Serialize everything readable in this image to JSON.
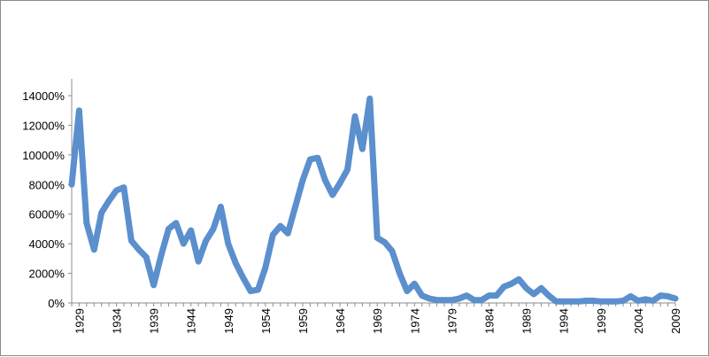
{
  "chart_data": {
    "type": "line",
    "title": "",
    "xlabel": "",
    "ylabel": "",
    "x_tick_labels": [
      "1929",
      "1934",
      "1939",
      "1944",
      "1949",
      "1954",
      "1959",
      "1964",
      "1969",
      "1974",
      "1979",
      "1984",
      "1989",
      "1994",
      "1999",
      "2004",
      "2009"
    ],
    "y_tick_labels": [
      "0%",
      "2000%",
      "4000%",
      "6000%",
      "8000%",
      "10000%",
      "12000%",
      "14000%"
    ],
    "ylim": [
      0,
      14000
    ],
    "xlim": [
      1928,
      2009
    ],
    "grid": false,
    "legend": "none",
    "series_color": "#5b8fcd",
    "series": [
      {
        "x": [
          1928,
          1929,
          1930,
          1931,
          1932,
          1933,
          1934,
          1935,
          1936,
          1937,
          1938,
          1939,
          1940,
          1941,
          1942,
          1943,
          1944,
          1945,
          1946,
          1947,
          1948,
          1949,
          1950,
          1951,
          1952,
          1953,
          1954,
          1955,
          1956,
          1957,
          1958,
          1959,
          1960,
          1961,
          1962,
          1963,
          1964,
          1965,
          1966,
          1967,
          1968,
          1969,
          1970,
          1971,
          1972,
          1973,
          1974,
          1975,
          1976,
          1977,
          1978,
          1979,
          1980,
          1981,
          1982,
          1983,
          1984,
          1985,
          1986,
          1987,
          1988,
          1989,
          1990,
          1991,
          1992,
          1993,
          1994,
          1995,
          1996,
          1997,
          1998,
          1999,
          2000,
          2001,
          2002,
          2003,
          2004,
          2005,
          2006,
          2007,
          2008,
          2009
        ],
        "values": [
          8000,
          13000,
          5400,
          3600,
          6100,
          6900,
          7600,
          7800,
          4200,
          3600,
          3100,
          1200,
          3200,
          5000,
          5400,
          4000,
          4900,
          2800,
          4200,
          5000,
          6500,
          4000,
          2700,
          1700,
          800,
          900,
          2400,
          4600,
          5200,
          4700,
          6500,
          8300,
          9700,
          9800,
          8300,
          7300,
          8100,
          9000,
          12600,
          10400,
          13800,
          4400,
          4100,
          3500,
          2000,
          800,
          1300,
          500,
          300,
          200,
          200,
          200,
          300,
          500,
          200,
          200,
          500,
          500,
          1100,
          1300,
          1600,
          1000,
          600,
          1000,
          500,
          100,
          100,
          100,
          100,
          150,
          150,
          100,
          100,
          100,
          150,
          450,
          150,
          250,
          150,
          500,
          450,
          300
        ]
      }
    ]
  }
}
